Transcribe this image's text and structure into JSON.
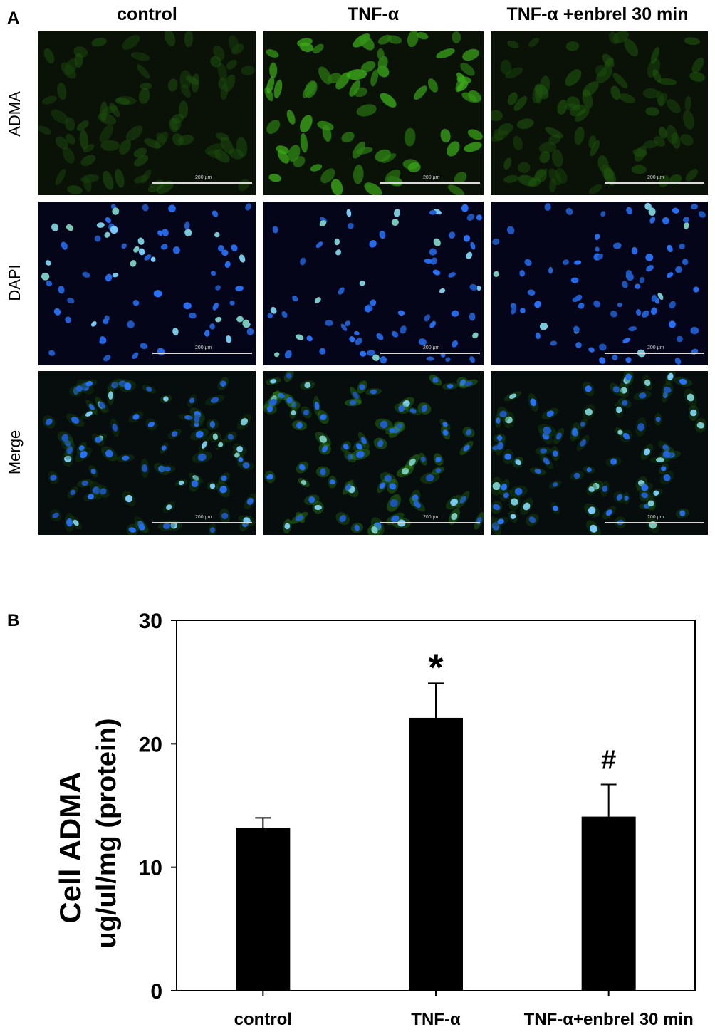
{
  "panel_a": {
    "letter": "A",
    "columns": [
      "control",
      "TNF-α",
      "TNF-α +enbrel 30 min"
    ],
    "rows": [
      "ADMA",
      "DAPI",
      "Merge"
    ],
    "scale_label": "200 μm"
  },
  "panel_b": {
    "letter": "B"
  },
  "chart_data": {
    "type": "bar",
    "categories": [
      "control",
      "TNF-α",
      "TNF-α+enbrel 30 min"
    ],
    "values": [
      13.2,
      22.1,
      14.1
    ],
    "errors": [
      0.8,
      2.8,
      2.6
    ],
    "annotations": [
      "",
      "*",
      "#"
    ],
    "ylabel_line1": "Cell ADMA",
    "ylabel_line2": "ug/ul/mg (protein)",
    "ylim": [
      0,
      30
    ],
    "yticks": [
      0,
      10,
      20,
      30
    ],
    "bar_color": "#000000"
  }
}
